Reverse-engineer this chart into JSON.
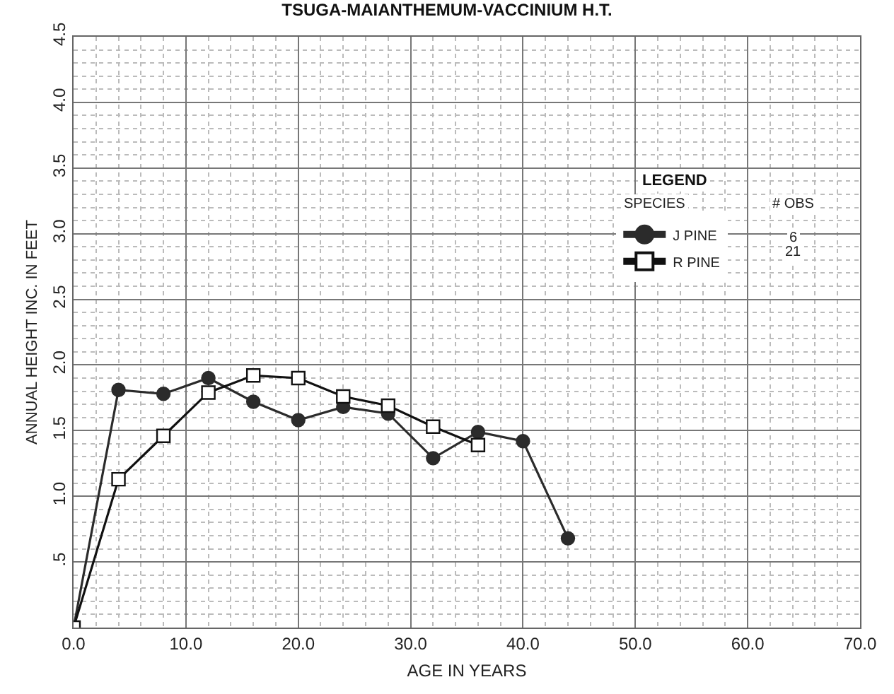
{
  "chart_data": {
    "type": "line",
    "title": "TSUGA-MAIANTHEMUM-VACCINIUM H.T.",
    "xlabel": "AGE IN YEARS",
    "ylabel": "ANNUAL HEIGHT INC. IN FEET",
    "legend_title": "LEGEND",
    "series": [
      {
        "name": "J PINE",
        "color": "#2b2b2b",
        "marker": "circle",
        "x": [
          0,
          4,
          8,
          12,
          16,
          20,
          24,
          28,
          32,
          36,
          40,
          44
        ],
        "values": [
          0,
          1.81,
          1.78,
          1.9,
          1.72,
          1.58,
          1.68,
          1.63,
          1.29,
          1.49,
          1.42,
          0.68
        ]
      },
      {
        "name": "R PINE",
        "color": "#111111",
        "marker": "square",
        "x": [
          0,
          4,
          8,
          12,
          16,
          20,
          24,
          28,
          32,
          36
        ],
        "values": [
          0,
          1.13,
          1.46,
          1.79,
          1.92,
          1.9,
          1.76,
          1.69,
          1.53,
          1.39
        ]
      }
    ],
    "annotations": [
      "SPECIES",
      "# OBS",
      "6",
      "21"
    ],
    "xlim": [
      0,
      70
    ],
    "xticks": [
      {
        "value": 0,
        "label": "0.0"
      },
      {
        "value": 10,
        "label": "10.0"
      },
      {
        "value": 20,
        "label": "20.0"
      },
      {
        "value": 30,
        "label": "30.0"
      },
      {
        "value": 40,
        "label": "40.0"
      },
      {
        "value": 50,
        "label": "50.0"
      },
      {
        "value": 60,
        "label": "60.0"
      },
      {
        "value": 70,
        "label": "70.0"
      }
    ],
    "ylim": [
      0,
      4.5
    ],
    "yticks": [
      {
        "value": 0.5,
        "label": ".5"
      },
      {
        "value": 1,
        "label": "1.0"
      },
      {
        "value": 1.5,
        "label": "1.5"
      },
      {
        "value": 2,
        "label": "2.0"
      },
      {
        "value": 2.5,
        "label": "2.5"
      },
      {
        "value": 3,
        "label": "3.0"
      },
      {
        "value": 3.5,
        "label": "3.5"
      },
      {
        "value": 4,
        "label": "4.0"
      },
      {
        "value": 4.5,
        "label": "4.5"
      }
    ],
    "grid": true,
    "legend": "top right",
    "line_style": "solid"
  }
}
